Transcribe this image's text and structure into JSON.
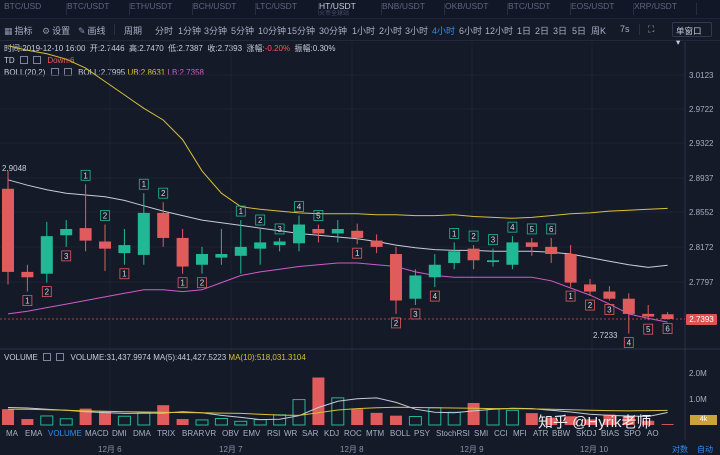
{
  "tickers": [
    {
      "pair": "BTC/USD",
      "sub": "",
      "active": false
    },
    {
      "pair": "BTC/USDT",
      "sub": "",
      "active": false
    },
    {
      "pair": "ETH/USDT",
      "sub": "",
      "active": false
    },
    {
      "pair": "BCH/USDT",
      "sub": "",
      "active": false
    },
    {
      "pair": "LTC/USDT",
      "sub": "",
      "active": false
    },
    {
      "pair": "HT/USDT",
      "sub": "火币全球站",
      "active": true
    },
    {
      "pair": "BNB/USDT",
      "sub": "",
      "active": false
    },
    {
      "pair": "OKB/USDT",
      "sub": "",
      "active": false
    },
    {
      "pair": "BTC/USDT",
      "sub": "",
      "active": false
    },
    {
      "pair": "EOS/USDT",
      "sub": "",
      "active": false
    },
    {
      "pair": "XRP/USDT",
      "sub": "",
      "active": false
    }
  ],
  "toolbar": {
    "indicators": "指标",
    "settings": "设置",
    "draw": "画线",
    "period": "周期",
    "periods": [
      "分时",
      "1分钟",
      "3分钟",
      "5分钟",
      "10分钟",
      "15分钟",
      "30分钟",
      "1小时",
      "2小时",
      "3小时",
      "4小时",
      "6小时",
      "12小时",
      "1日",
      "2日",
      "3日",
      "5日",
      "周K",
      "7s"
    ],
    "active_period": "4小时",
    "chart_select": "单窗口"
  },
  "info": {
    "time_label": "时间:",
    "time": "2019-12-10 16:00",
    "open_label": "开:",
    "open": "2.7446",
    "high_label": "高:",
    "high": "2.7470",
    "low_label": "低:",
    "low": "2.7387",
    "close_label": "收:",
    "close": "2.7393",
    "change_label": "涨幅:",
    "change": "-0.20%",
    "amp_label": "振幅:",
    "amp": "0.30%"
  },
  "td": {
    "name": "TD",
    "down": "Down:6"
  },
  "boll": {
    "name": "BOLL(20,2)",
    "mid": "BOLL:2.7995",
    "up": "UB:2.8631",
    "lb": "LB:2.7358"
  },
  "price_axis": [
    "3.0123",
    "2.9722",
    "2.9322",
    "2.8937",
    "2.8552",
    "2.8172",
    "2.7797",
    "2.7393"
  ],
  "current_price": "2.7393",
  "hi_label": "2.9048",
  "low_label": "2.7233",
  "volume": {
    "name": "VOLUME",
    "vol": "VOLUME:31,437.9974",
    "ma5": "MA(5):441,427.5223",
    "ma10": "MA(10):518,031.3104"
  },
  "volume_axis": [
    "2.0M",
    "1.0M"
  ],
  "volume_tag": "4k",
  "dates": [
    "12月 6",
    "12月 7",
    "12月 8",
    "12月 9",
    "12月 10"
  ],
  "indicators": [
    "MA",
    "EMA",
    "VOLUME",
    "MACD",
    "DMI",
    "DMA",
    "TRIX",
    "BRAR",
    "VR",
    "OBV",
    "EMV",
    "RSI",
    "WR",
    "SAR",
    "KDJ",
    "ROC",
    "MTM",
    "BOLL",
    "PSY",
    "StochRSI",
    "SMI",
    "CCI",
    "MFI",
    "ATR",
    "BBW",
    "SKDJ",
    "BIAS",
    "SPO",
    "AO"
  ],
  "active_indicator": "VOLUME",
  "bottom_links": {
    "compare": "对数",
    "depth": "自动"
  },
  "watermark": "知乎 @Hyrik老师",
  "colors": {
    "up": "#21b995",
    "down": "#e05c5c",
    "accent": "#2f8cf0",
    "boll_mid": "#c7ccd8",
    "boll_up": "#d8c133",
    "boll_lb": "#d05cc8"
  },
  "chart_data": {
    "type": "candlestick",
    "pair": "HT/USDT",
    "interval": "4小时",
    "candles": [
      {
        "o": 2.885,
        "h": 2.905,
        "l": 2.778,
        "c": 2.792
      },
      {
        "o": 2.792,
        "h": 2.8,
        "l": 2.77,
        "c": 2.786
      },
      {
        "o": 2.79,
        "h": 2.848,
        "l": 2.78,
        "c": 2.832
      },
      {
        "o": 2.833,
        "h": 2.85,
        "l": 2.82,
        "c": 2.84
      },
      {
        "o": 2.841,
        "h": 2.89,
        "l": 2.815,
        "c": 2.827
      },
      {
        "o": 2.826,
        "h": 2.845,
        "l": 2.793,
        "c": 2.818
      },
      {
        "o": 2.813,
        "h": 2.84,
        "l": 2.8,
        "c": 2.822
      },
      {
        "o": 2.811,
        "h": 2.88,
        "l": 2.8,
        "c": 2.858
      },
      {
        "o": 2.858,
        "h": 2.87,
        "l": 2.82,
        "c": 2.83
      },
      {
        "o": 2.83,
        "h": 2.84,
        "l": 2.79,
        "c": 2.798
      },
      {
        "o": 2.8,
        "h": 2.82,
        "l": 2.79,
        "c": 2.812
      },
      {
        "o": 2.808,
        "h": 2.84,
        "l": 2.8,
        "c": 2.812
      },
      {
        "o": 2.81,
        "h": 2.85,
        "l": 2.79,
        "c": 2.82
      },
      {
        "o": 2.818,
        "h": 2.84,
        "l": 2.8,
        "c": 2.825
      },
      {
        "o": 2.822,
        "h": 2.83,
        "l": 2.815,
        "c": 2.826
      },
      {
        "o": 2.824,
        "h": 2.855,
        "l": 2.815,
        "c": 2.845
      },
      {
        "o": 2.84,
        "h": 2.845,
        "l": 2.825,
        "c": 2.835
      },
      {
        "o": 2.835,
        "h": 2.85,
        "l": 2.825,
        "c": 2.84
      },
      {
        "o": 2.838,
        "h": 2.846,
        "l": 2.823,
        "c": 2.83
      },
      {
        "o": 2.827,
        "h": 2.834,
        "l": 2.813,
        "c": 2.82
      },
      {
        "o": 2.812,
        "h": 2.82,
        "l": 2.745,
        "c": 2.76
      },
      {
        "o": 2.762,
        "h": 2.795,
        "l": 2.755,
        "c": 2.788
      },
      {
        "o": 2.786,
        "h": 2.812,
        "l": 2.775,
        "c": 2.8
      },
      {
        "o": 2.802,
        "h": 2.825,
        "l": 2.795,
        "c": 2.815
      },
      {
        "o": 2.818,
        "h": 2.822,
        "l": 2.795,
        "c": 2.805
      },
      {
        "o": 2.803,
        "h": 2.818,
        "l": 2.798,
        "c": 2.805
      },
      {
        "o": 2.8,
        "h": 2.832,
        "l": 2.795,
        "c": 2.825
      },
      {
        "o": 2.825,
        "h": 2.83,
        "l": 2.81,
        "c": 2.82
      },
      {
        "o": 2.82,
        "h": 2.83,
        "l": 2.802,
        "c": 2.812
      },
      {
        "o": 2.812,
        "h": 2.822,
        "l": 2.775,
        "c": 2.78
      },
      {
        "o": 2.778,
        "h": 2.784,
        "l": 2.765,
        "c": 2.77
      },
      {
        "o": 2.77,
        "h": 2.776,
        "l": 2.76,
        "c": 2.762
      },
      {
        "o": 2.762,
        "h": 2.768,
        "l": 2.723,
        "c": 2.745
      },
      {
        "o": 2.745,
        "h": 2.755,
        "l": 2.738,
        "c": 2.742
      },
      {
        "o": 2.7446,
        "h": 2.747,
        "l": 2.7387,
        "c": 2.7393
      }
    ],
    "boll_mid": [
      2.895,
      2.889,
      2.884,
      2.88,
      2.878,
      2.876,
      2.872,
      2.866,
      2.86,
      2.855,
      2.85,
      2.847,
      2.844,
      2.841,
      2.838,
      2.835,
      2.833,
      2.831,
      2.829,
      2.826,
      2.822,
      2.819,
      2.817,
      2.816,
      2.816,
      2.815,
      2.815,
      2.815,
      2.814,
      2.812,
      2.808,
      2.804,
      2.8,
      2.797,
      2.7995
    ],
    "boll_up": [
      3.045,
      3.04,
      3.036,
      3.03,
      3.02,
      3.005,
      2.99,
      2.975,
      2.962,
      2.94,
      2.905,
      2.88,
      2.865,
      2.862,
      2.86,
      2.858,
      2.857,
      2.857,
      2.857,
      2.856,
      2.856,
      2.855,
      2.855,
      2.856,
      2.854,
      2.853,
      2.852,
      2.853,
      2.855,
      2.857,
      2.858,
      2.86,
      2.861,
      2.862,
      2.8631
    ],
    "boll_lb": [
      2.745,
      2.748,
      2.752,
      2.756,
      2.76,
      2.764,
      2.768,
      2.772,
      2.772,
      2.77,
      2.772,
      2.78,
      2.788,
      2.792,
      2.795,
      2.798,
      2.8,
      2.802,
      2.802,
      2.8,
      2.798,
      2.792,
      2.788,
      2.786,
      2.786,
      2.786,
      2.786,
      2.786,
      2.782,
      2.774,
      2.766,
      2.756,
      2.745,
      2.74,
      2.7358
    ],
    "td_labels": [
      {
        "i": 0,
        "n": "",
        "pos": "none"
      },
      {
        "i": 1,
        "n": "1",
        "pos": "below"
      },
      {
        "i": 2,
        "n": "2",
        "pos": "below"
      },
      {
        "i": 3,
        "n": "3",
        "pos": "below"
      },
      {
        "i": 4,
        "n": "1",
        "pos": "above"
      },
      {
        "i": 5,
        "n": "2",
        "pos": "above"
      },
      {
        "i": 6,
        "n": "1",
        "pos": "below"
      },
      {
        "i": 7,
        "n": "1",
        "pos": "above"
      },
      {
        "i": 8,
        "n": "2",
        "pos": "above"
      },
      {
        "i": 9,
        "n": "1",
        "pos": "below"
      },
      {
        "i": 10,
        "n": "2",
        "pos": "below"
      },
      {
        "i": 12,
        "n": "1",
        "pos": "above"
      },
      {
        "i": 13,
        "n": "2",
        "pos": "above"
      },
      {
        "i": 14,
        "n": "3",
        "pos": "above"
      },
      {
        "i": 15,
        "n": "4",
        "pos": "above"
      },
      {
        "i": 16,
        "n": "5",
        "pos": "above"
      },
      {
        "i": 18,
        "n": "1",
        "pos": "below"
      },
      {
        "i": 20,
        "n": "2",
        "pos": "below"
      },
      {
        "i": 21,
        "n": "3",
        "pos": "below"
      },
      {
        "i": 22,
        "n": "4",
        "pos": "below"
      },
      {
        "i": 23,
        "n": "1",
        "pos": "above"
      },
      {
        "i": 24,
        "n": "2",
        "pos": "above"
      },
      {
        "i": 25,
        "n": "3",
        "pos": "above"
      },
      {
        "i": 26,
        "n": "4",
        "pos": "above"
      },
      {
        "i": 27,
        "n": "5",
        "pos": "above"
      },
      {
        "i": 28,
        "n": "6",
        "pos": "above"
      },
      {
        "i": 29,
        "n": "1",
        "pos": "below"
      },
      {
        "i": 30,
        "n": "2",
        "pos": "below"
      },
      {
        "i": 31,
        "n": "3",
        "pos": "below"
      },
      {
        "i": 32,
        "n": "4",
        "pos": "below"
      },
      {
        "i": 33,
        "n": "5",
        "pos": "below"
      },
      {
        "i": 34,
        "n": "6",
        "pos": "below"
      }
    ],
    "volume": [
      560000,
      210000,
      320000,
      220000,
      580000,
      480000,
      310000,
      420000,
      700000,
      210000,
      180000,
      230000,
      130000,
      190000,
      360000,
      900000,
      1680000,
      960000,
      560000,
      430000,
      330000,
      300000,
      610000,
      450000,
      780000,
      580000,
      520000,
      420000,
      260000,
      310000,
      200000,
      370000,
      310000,
      150000,
      31438
    ],
    "volume_ma5": [
      620000,
      600000,
      560000,
      520000,
      470000,
      440000,
      410000,
      420000,
      420000,
      470000,
      430000,
      340000,
      270000,
      190000,
      200000,
      330000,
      620000,
      840000,
      930000,
      960000,
      800000,
      560000,
      450000,
      430000,
      500000,
      560000,
      590000,
      580000,
      520000,
      460000,
      380000,
      340000,
      320000,
      300000,
      441428
    ],
    "volume_ma10": [
      560000,
      560000,
      540000,
      520000,
      500000,
      490000,
      470000,
      460000,
      450000,
      440000,
      430000,
      420000,
      410000,
      380000,
      350000,
      340000,
      430000,
      530000,
      580000,
      610000,
      630000,
      620000,
      610000,
      600000,
      590000,
      580000,
      580000,
      570000,
      560000,
      540000,
      520000,
      510000,
      500000,
      510000,
      518031
    ]
  }
}
